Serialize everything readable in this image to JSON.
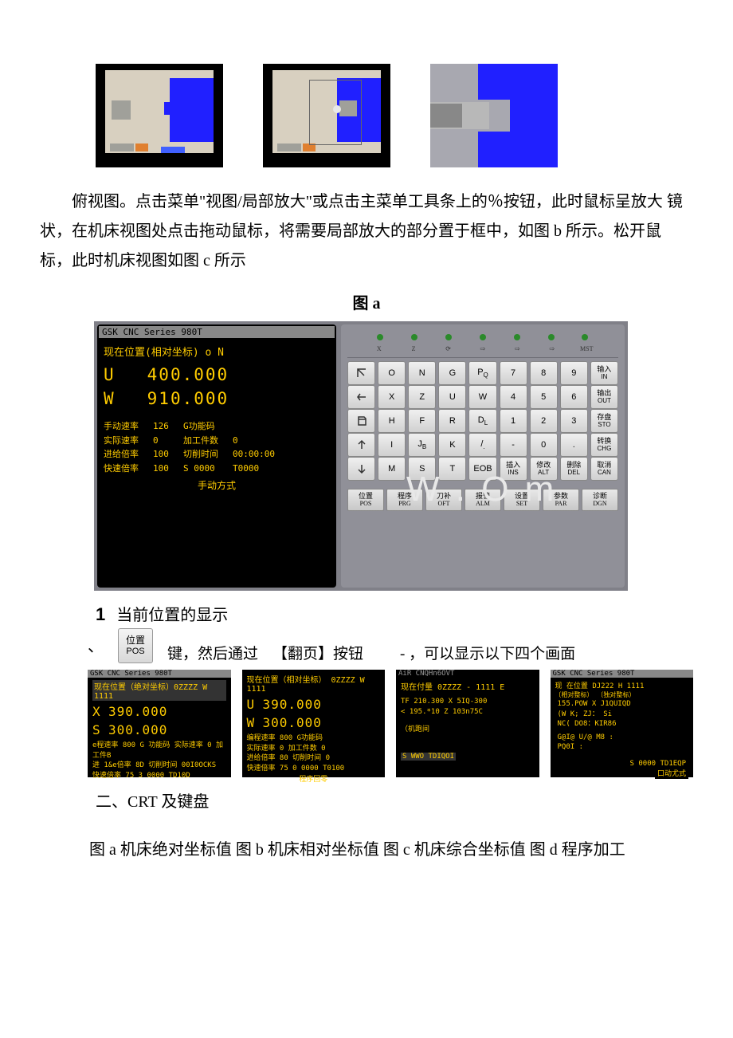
{
  "thumbs": {
    "selection_in_b": true
  },
  "para_main": "俯视图。点击菜单\"视图/局部放大\"或点击主菜单工具条上的％按钮，此时鼠标呈放大 镜状，在机床视图处点击拖动鼠标，将需要局部放大的部分置于框中，如图 b 所示。松开鼠 标，此时机床视图如图 c 所示",
  "fig_a": "图 a",
  "crt": {
    "titlebar": "GSK  CNC Series 980T",
    "heading": "现在位置(相对坐标)   o        N",
    "U_label": "U",
    "U_val": "400.000",
    "W_label": "W",
    "W_val": "910.000",
    "rows": [
      [
        "手动速率",
        "126",
        "G功能码",
        ""
      ],
      [
        "实际速率",
        "0",
        "加工件数",
        "0"
      ],
      [
        "进给倍率",
        "100",
        "切削时间",
        "00:00:00"
      ],
      [
        "快速倍率",
        "100",
        "S 0000",
        "T0000"
      ]
    ],
    "mode": "手动方式"
  },
  "leds": [
    "X",
    "Z",
    "⟳",
    "⇨",
    "⇨",
    "⇨",
    "MST"
  ],
  "keypad_rows": [
    [
      {
        "sym": "arrow-nw"
      },
      {
        "t": "O"
      },
      {
        "t": "N"
      },
      {
        "t": "G"
      },
      {
        "t": "P",
        "sub": "Q"
      },
      {
        "t": "7"
      },
      {
        "t": "8"
      },
      {
        "t": "9"
      },
      {
        "cn": "输入",
        "en": "IN"
      }
    ],
    [
      {
        "sym": "arrow-left"
      },
      {
        "t": "X"
      },
      {
        "t": "Z"
      },
      {
        "t": "U"
      },
      {
        "t": "W"
      },
      {
        "t": "4"
      },
      {
        "t": "5"
      },
      {
        "t": "6"
      },
      {
        "cn": "输出",
        "en": "OUT"
      }
    ],
    [
      {
        "sym": "doc"
      },
      {
        "t": "H"
      },
      {
        "t": "F"
      },
      {
        "t": "R"
      },
      {
        "t": "D",
        "sub": "L"
      },
      {
        "t": "1"
      },
      {
        "t": "2"
      },
      {
        "t": "3"
      },
      {
        "cn": "存盘",
        "en": "STO"
      }
    ],
    [
      {
        "sym": "arrow-up"
      },
      {
        "t": "I"
      },
      {
        "t": "J",
        "sub": "B"
      },
      {
        "t": "K"
      },
      {
        "t": "/",
        "sub": "."
      },
      {
        "t": "-"
      },
      {
        "t": "0"
      },
      {
        "t": "."
      },
      {
        "cn": "转换",
        "en": "CHG"
      }
    ],
    [
      {
        "sym": "arrow-down"
      },
      {
        "t": "M"
      },
      {
        "t": "S"
      },
      {
        "t": "T"
      },
      {
        "t": "EOB"
      },
      {
        "cn": "插入",
        "en": "INS"
      },
      {
        "cn": "修改",
        "en": "ALT"
      },
      {
        "cn": "删除",
        "en": "DEL"
      },
      {
        "cn": "取消",
        "en": "CAN"
      }
    ]
  ],
  "softkeys": [
    {
      "cn": "位置",
      "en": "POS"
    },
    {
      "cn": "程序",
      "en": "PRG"
    },
    {
      "cn": "刀补",
      "en": "OFT"
    },
    {
      "cn": "报警",
      "en": "ALM"
    },
    {
      "cn": "设置",
      "en": "SET"
    },
    {
      "cn": "参数",
      "en": "PAR"
    },
    {
      "cn": "诊断",
      "en": "DGN"
    }
  ],
  "sec1_num": "1",
  "sec1_title": "当前位置的显示",
  "poskey": {
    "cn": "位置",
    "en": "POS"
  },
  "inline_t1": "键，然后通过",
  "inline_t2": "【翻页】按钮",
  "inline_t3": "- ，可以显示以下四个画面",
  "minis": {
    "a": {
      "bar": "GSK   CNC Series 980T",
      "head": "现在位置（绝对坐标）0ZZZZ W 1111",
      "X": "390.000",
      "S": "300.000",
      "l1": "e程速率 800 G 功能码 实际速率 0     加工件B",
      "l2": "进 1&e倍率 8D   切削时间 00I0OCKS",
      "l3": "快速倍率 75        3 0000 TD10D"
    },
    "b": {
      "head": "现在位置（相对坐标）  0ZZZZ    W 1111",
      "U": "390.000",
      "W": "300.000",
      "rows": [
        "编程速率    800    G功能码",
        "实际速率    0      加工件数  0",
        "进给倍率    80     切削时间  0",
        "快速倍率    75     0 0000  T0100"
      ],
      "mode": "程序回零"
    },
    "c": {
      "bar": "AiR CNQHn6OVT",
      "head": "现在付量             0ZZZZ    - 1111 E",
      "rows": [
        "TF    210.300    X    5IQ-300",
        "<      195.*10    Z    103n75C"
      ],
      "mid": "（机跑间",
      "foot": "S WWO TDIQOI"
    },
    "d": {
      "bar": "GSK   CNC Series 980T",
      "head": "现 在位置               DJ222           H 1111",
      "sub1": "〔相对整标）                 〔独对整标）",
      "row1": "          155.POW      X       J1QUIQD",
      "row2": "(W    K;  ZJ：  Si",
      "row3": "NC(    DO8：KIR86",
      "row4": "G@I@ U/@ M8 :",
      "row5": "  PQ0I :",
      "foot": "S 0000 TD1EQP",
      "mode": "口动尤式"
    }
  },
  "h2": "二、CRT 及键盘",
  "para2": "图 a 机床绝对坐标值 图 b 机床相对坐标值 图 c 机床综合坐标值 图 d 程序加工",
  "colors": {
    "crt_bg": "#000000",
    "crt_fg": "#ffcc00",
    "panel_bg": "#909098",
    "key_bg_top": "#f0f0f0",
    "key_bg_bot": "#d0d0d0",
    "blue": "#2020ff",
    "beige": "#d8d0c0",
    "gray": "#a0a09a",
    "orange": "#e08030",
    "led": "#2a8a2a"
  }
}
